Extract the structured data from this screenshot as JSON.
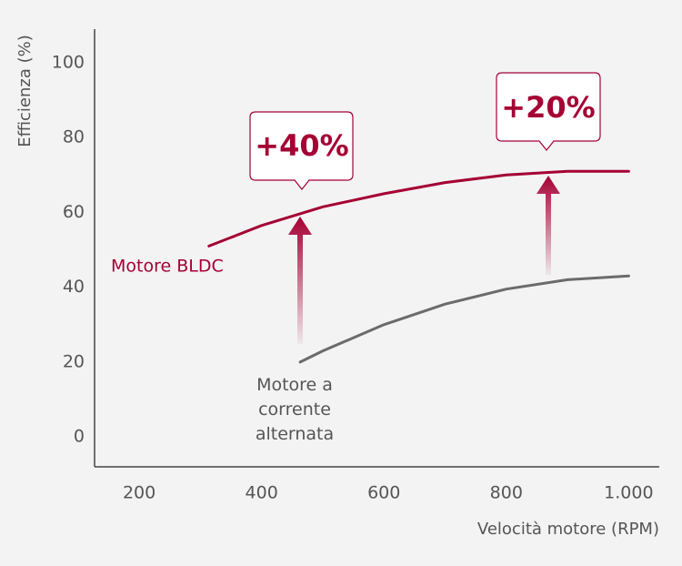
{
  "chart_data": {
    "type": "line",
    "y_label": "Efficienza (%)",
    "x_label": "Velocità motore (RPM)",
    "xlim": [
      127,
      1050
    ],
    "ylim": [
      -8,
      109
    ],
    "xticks": [
      200,
      400,
      600,
      800,
      {
        "value": 1000,
        "label": "1.000"
      }
    ],
    "yticks": [
      0,
      20,
      40,
      60,
      80,
      100
    ],
    "grid": false,
    "series": [
      {
        "name": "Motore BLDC",
        "color": "#a50034",
        "x": [
          314,
          400,
          500,
          600,
          700,
          800,
          900,
          1000
        ],
        "values": [
          51,
          56.5,
          61.5,
          65,
          68,
          70,
          71,
          71
        ]
      },
      {
        "name": "Motore a corrente alternata",
        "color": "#6b6b6b",
        "x": [
          463,
          500,
          600,
          700,
          800,
          900,
          1000
        ],
        "values": [
          20,
          23,
          30,
          35.5,
          39.5,
          42,
          43
        ]
      }
    ],
    "annotations": [
      "+40%",
      "+20%"
    ]
  }
}
